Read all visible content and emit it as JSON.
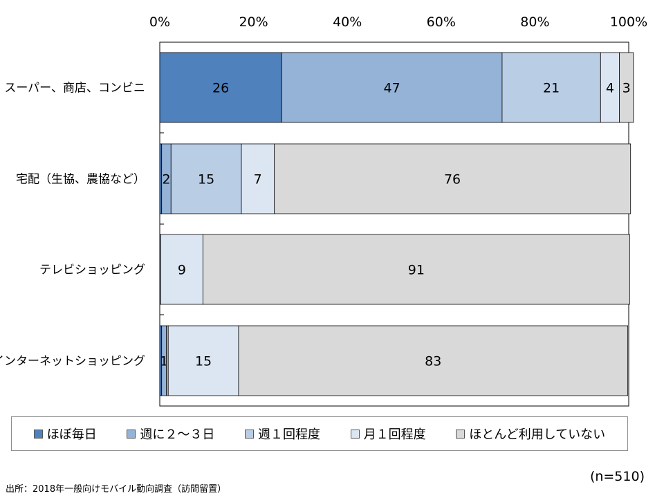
{
  "chart_data": {
    "type": "bar",
    "orientation": "horizontal",
    "stacked": true,
    "percent_scale": true,
    "xlim": [
      0,
      100
    ],
    "x_ticks": [
      "0%",
      "20%",
      "40%",
      "60%",
      "80%",
      "100%"
    ],
    "x_tick_values": [
      0,
      20,
      40,
      60,
      80,
      100
    ],
    "x_axis_position": "top",
    "grid": false,
    "legend_position": "bottom",
    "categories": [
      "スーパー、商店、コンビニ",
      "宅配（生協、農協など）",
      "テレビショッピング",
      "インターネットショッピング"
    ],
    "series": [
      {
        "name": "ほぼ毎日",
        "color": "#4f81bd",
        "values": [
          26,
          0.4,
          0,
          0.4
        ],
        "labels": [
          "26",
          "",
          "",
          ""
        ]
      },
      {
        "name": "週に２～３日",
        "color": "#95b3d7",
        "values": [
          47,
          2,
          0,
          1
        ],
        "labels": [
          "47",
          "2",
          "",
          "1"
        ]
      },
      {
        "name": "週１回程度",
        "color": "#b9cde5",
        "values": [
          21,
          15,
          0.2,
          0.4
        ],
        "labels": [
          "21",
          "15",
          "",
          ""
        ]
      },
      {
        "name": "月１回程度",
        "color": "#dce6f2",
        "values": [
          4,
          7,
          9,
          15
        ],
        "labels": [
          "4",
          "7",
          "9",
          "15"
        ]
      },
      {
        "name": "ほとんど利用していない",
        "color": "#d9d9d9",
        "values": [
          3,
          76,
          91,
          83
        ],
        "labels": [
          "3",
          "76",
          "91",
          "83"
        ]
      }
    ]
  },
  "sample_size": "(n=510)",
  "source": "出所：2018年一般向けモバイル動向調査（訪問留置）"
}
